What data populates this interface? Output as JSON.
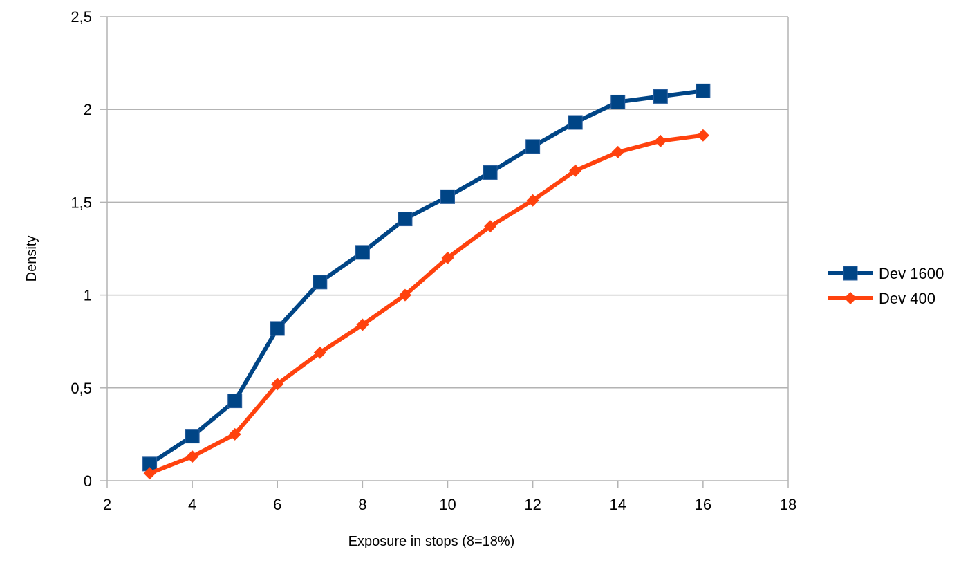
{
  "chart_data": {
    "type": "line",
    "title": "",
    "xlabel": "Exposure in stops (8=18%)",
    "ylabel": "Density",
    "xlim": [
      2,
      18
    ],
    "ylim": [
      0,
      2.5
    ],
    "x_ticks": [
      2,
      4,
      6,
      8,
      10,
      12,
      14,
      16,
      18
    ],
    "x_tick_labels": [
      "2",
      "4",
      "6",
      "8",
      "10",
      "12",
      "14",
      "16",
      "18"
    ],
    "y_ticks": [
      0,
      0.5,
      1,
      1.5,
      2,
      2.5
    ],
    "y_tick_labels": [
      "0",
      "0,5",
      "1",
      "1,5",
      "2",
      "2,5"
    ],
    "grid": "horizontal",
    "legend_position": "right",
    "series": [
      {
        "name": "Dev 1600",
        "color": "#004586",
        "marker": "square",
        "x": [
          3,
          4,
          5,
          6,
          7,
          8,
          9,
          10,
          11,
          12,
          13,
          14,
          15,
          16
        ],
        "y": [
          0.09,
          0.24,
          0.43,
          0.82,
          1.07,
          1.23,
          1.41,
          1.53,
          1.66,
          1.8,
          1.93,
          2.04,
          2.07,
          2.1
        ]
      },
      {
        "name": "Dev 400",
        "color": "#ff420e",
        "marker": "diamond",
        "x": [
          3,
          4,
          5,
          6,
          7,
          8,
          9,
          10,
          11,
          12,
          13,
          14,
          15,
          16
        ],
        "y": [
          0.04,
          0.13,
          0.25,
          0.52,
          0.69,
          0.84,
          1.0,
          1.2,
          1.37,
          1.51,
          1.67,
          1.77,
          1.83,
          1.86
        ]
      }
    ]
  }
}
